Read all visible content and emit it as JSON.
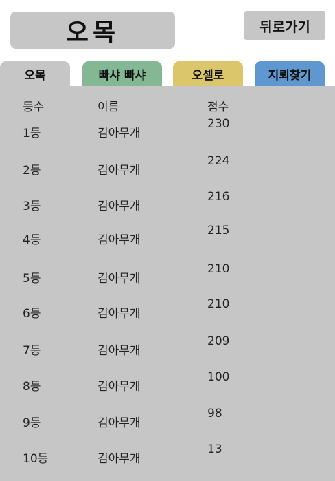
{
  "header": {
    "title": "오목",
    "back_label": "뒤로가기"
  },
  "tabs": [
    {
      "label": "오목",
      "active": true,
      "color": "#c6c6c6"
    },
    {
      "label": "빠샤 빠샤",
      "active": false,
      "color": "#84b895"
    },
    {
      "label": "오셀로",
      "active": false,
      "color": "#dcc66b"
    },
    {
      "label": "지뢰찾기",
      "active": false,
      "color": "#5f98d0"
    }
  ],
  "table": {
    "columns": [
      "등수",
      "이름",
      "점수"
    ],
    "rows": [
      {
        "rank": "1등",
        "name": "김아무개",
        "score": "230"
      },
      {
        "rank": "2등",
        "name": "김아무개",
        "score": "224"
      },
      {
        "rank": "3등",
        "name": "김아무개",
        "score": "216"
      },
      {
        "rank": "4등",
        "name": "김아무개",
        "score": "215"
      },
      {
        "rank": "5등",
        "name": "김아무개",
        "score": "210"
      },
      {
        "rank": "6등",
        "name": "김아무개",
        "score": "210"
      },
      {
        "rank": "7등",
        "name": "김아무개",
        "score": "209"
      },
      {
        "rank": "8등",
        "name": "김아무개",
        "score": "100"
      },
      {
        "rank": "9등",
        "name": "김아무개",
        "score": "98"
      },
      {
        "rank": "10등",
        "name": "김아무개",
        "score": "13"
      }
    ]
  }
}
